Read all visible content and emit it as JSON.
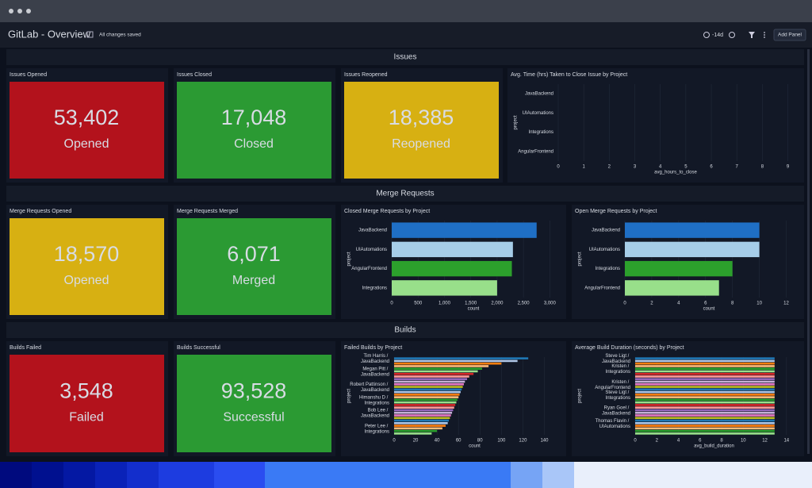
{
  "header": {
    "title": "GitLab - Overview",
    "status": "All changes saved",
    "time_range": "-14d",
    "button": "Add Panel"
  },
  "sections": [
    {
      "title": "Issues",
      "stats": [
        {
          "title": "Issues Opened",
          "value": "53,402",
          "caption": "Opened",
          "color": "#b3121c",
          "text_color": "#ffffff"
        },
        {
          "title": "Issues Closed",
          "value": "17,048",
          "caption": "Closed",
          "color": "#2b9a33",
          "text_color": "#ffffff"
        },
        {
          "title": "Issues Reopened",
          "value": "18,385",
          "caption": "Reopened",
          "color": "#d7b012",
          "text_color": "#1e1e1e"
        }
      ]
    },
    {
      "title": "Merge Requests",
      "stats": [
        {
          "title": "Merge Requests Opened",
          "value": "18,570",
          "caption": "Opened",
          "color": "#d7b012",
          "text_color": "#1e1e1e"
        },
        {
          "title": "Merge Requests Merged",
          "value": "6,071",
          "caption": "Merged",
          "color": "#2b9a33",
          "text_color": "#ffffff"
        }
      ]
    },
    {
      "title": "Builds",
      "stats": [
        {
          "title": "Builds Failed",
          "value": "3,548",
          "caption": "Failed",
          "color": "#b3121c",
          "text_color": "#ffffff"
        },
        {
          "title": "Builds Successful",
          "value": "93,528",
          "caption": "Successful",
          "color": "#2b9a33",
          "text_color": "#ffffff"
        }
      ]
    }
  ],
  "chart_data": [
    {
      "type": "hbar",
      "title": "Avg. Time (hrs) Taken to Close Issue by Project",
      "categories": [
        "JavaBackend",
        "UIAutomations",
        "Integrations",
        "AngularFrontend"
      ],
      "values": [
        0,
        0,
        0,
        0
      ],
      "colors": [
        "#1f6fc5",
        "#a6cde8",
        "#2ca02c",
        "#98df8a"
      ],
      "xlim": [
        0,
        9.2
      ],
      "xticks": [
        0,
        1,
        2,
        3,
        4,
        5,
        6,
        7,
        8,
        9
      ],
      "grid": true,
      "xlabel": "avg_hours_to_close",
      "ylabel": "project"
    },
    {
      "type": "hbar",
      "title": "Closed Merge Requests by Project",
      "categories": [
        "JavaBackend",
        "UIAutomations",
        "AngularFrontend",
        "Integrations"
      ],
      "values": [
        2750,
        2300,
        2280,
        2000
      ],
      "colors": [
        "#1f6fc5",
        "#a6cde8",
        "#2ca02c",
        "#98df8a"
      ],
      "xlim": [
        0,
        3100
      ],
      "xticks": [
        0,
        500,
        {
          "value": 1000,
          "label": "1,000"
        },
        {
          "value": 1500,
          "label": "1,500"
        },
        {
          "value": 2000,
          "label": "2,000"
        },
        {
          "value": 2500,
          "label": "2,500"
        },
        {
          "value": 3000,
          "label": "3,000"
        }
      ],
      "grid": true,
      "xlabel": "count",
      "ylabel": "project"
    },
    {
      "type": "hbar",
      "title": "Open Merge Requests by Project",
      "categories": [
        "JavaBackend",
        "UIAutomations",
        "Integrations",
        "AngularFrontend"
      ],
      "values": [
        10,
        10,
        8,
        7
      ],
      "colors": [
        "#1f6fc5",
        "#a6cde8",
        "#2ca02c",
        "#98df8a"
      ],
      "xlim": [
        0,
        12.5
      ],
      "xticks": [
        0,
        2,
        4,
        6,
        8,
        10,
        12
      ],
      "grid": true,
      "xlabel": "count",
      "ylabel": "project"
    },
    {
      "type": "hbar",
      "title": "Failed Builds by Project",
      "categories": [
        "Tim Harris / JavaBackend",
        null,
        null,
        null,
        null,
        "Megan Pitt / JavaBackend",
        null,
        null,
        null,
        null,
        null,
        "Robert Pattinson / JavaBackend",
        null,
        null,
        null,
        null,
        "Himanshu D / Integrations",
        null,
        null,
        null,
        null,
        "Bob Lee / JavaBackend",
        null,
        null,
        null,
        null,
        null,
        "Peter Lee / Integrations",
        null,
        null
      ],
      "values": [
        125,
        115,
        100,
        88,
        82,
        78,
        74,
        70,
        68,
        66,
        65,
        64,
        63,
        62,
        61,
        60,
        59,
        58,
        57,
        56,
        55,
        54,
        53,
        52,
        51,
        50,
        48,
        45,
        40,
        35
      ],
      "palette": [
        "#1f77b4",
        "#aec7e8",
        "#ff7f0e",
        "#ffbb78",
        "#2ca02c",
        "#98df8a",
        "#d62728",
        "#ff9896",
        "#9467bd",
        "#c5b0d5",
        "#e377c2",
        "#bcbd22"
      ],
      "xlim": [
        0,
        150
      ],
      "xticks": [
        0,
        20,
        40,
        60,
        80,
        100,
        120,
        140
      ],
      "grid": true,
      "xlabel": "count",
      "ylabel": "project"
    },
    {
      "type": "hbar",
      "title": "Average Build Duration (seconds) by Project",
      "categories": [
        "Steve Ligt / JavaBackend",
        null,
        null,
        null,
        "Kristen / Integrations",
        null,
        null,
        null,
        null,
        null,
        "Kristen / AngularFrontend",
        null,
        null,
        null,
        "Steve Ligt / Integrations",
        null,
        null,
        null,
        null,
        null,
        "Ryan Goel / JavaBackend",
        null,
        null,
        null,
        null,
        "Thomas Flavin / UIAutomations",
        null,
        null,
        null,
        null
      ],
      "values": [
        12.9,
        12.9,
        12.9,
        12.9,
        12.9,
        12.9,
        12.9,
        12.9,
        12.9,
        12.9,
        12.9,
        12.9,
        12.9,
        12.9,
        12.9,
        12.9,
        12.9,
        12.9,
        12.9,
        12.9,
        12.9,
        12.9,
        12.9,
        12.9,
        12.9,
        12.9,
        12.9,
        12.9,
        12.9,
        12.9
      ],
      "palette": [
        "#1f77b4",
        "#aec7e8",
        "#ff7f0e",
        "#ffbb78",
        "#2ca02c",
        "#98df8a",
        "#d62728",
        "#ff9896",
        "#9467bd",
        "#c5b0d5",
        "#e377c2",
        "#bcbd22"
      ],
      "xlim": [
        0,
        14.6
      ],
      "xticks": [
        0,
        2,
        4,
        6,
        8,
        10,
        12,
        14
      ],
      "grid": true,
      "xlabel": "avg_build_duration",
      "ylabel": "project"
    }
  ]
}
